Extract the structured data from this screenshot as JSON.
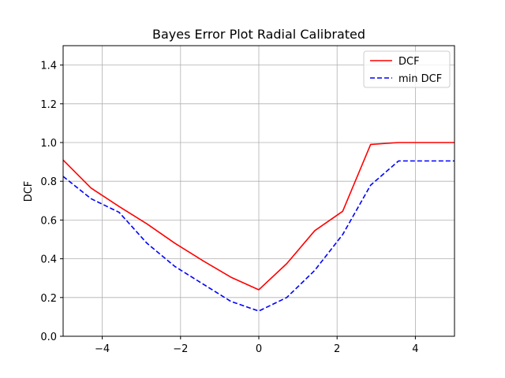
{
  "chart_data": {
    "type": "line",
    "title": "Bayes Error Plot Radial Calibrated",
    "xlabel": "",
    "ylabel": "DCF",
    "xlim": [
      -5,
      5
    ],
    "ylim": [
      0,
      1.5
    ],
    "xticks": [
      -4,
      -2,
      0,
      2,
      4
    ],
    "xtick_labels": [
      "−4",
      "−2",
      "0",
      "2",
      "4"
    ],
    "yticks": [
      0.0,
      0.2,
      0.4,
      0.6,
      0.8,
      1.0,
      1.2,
      1.4
    ],
    "ytick_labels": [
      "0.0",
      "0.2",
      "0.4",
      "0.6",
      "0.8",
      "1.0",
      "1.2",
      "1.4"
    ],
    "grid": true,
    "legend_position": "top-right",
    "x": [
      -5.0,
      -4.286,
      -3.571,
      -2.857,
      -2.143,
      -1.429,
      -0.714,
      0.0,
      0.714,
      1.429,
      2.143,
      2.857,
      3.571,
      4.286,
      5.0
    ],
    "series": [
      {
        "name": "DCF",
        "color": "#ff0000",
        "style": "solid",
        "values": [
          0.91,
          0.765,
          0.67,
          0.58,
          0.48,
          0.39,
          0.305,
          0.24,
          0.375,
          0.545,
          0.645,
          0.99,
          1.0,
          1.0,
          1.0
        ]
      },
      {
        "name": "min DCF",
        "color": "#0000ff",
        "style": "dashed",
        "values": [
          0.825,
          0.71,
          0.64,
          0.48,
          0.36,
          0.27,
          0.18,
          0.13,
          0.2,
          0.34,
          0.525,
          0.78,
          0.905,
          0.905,
          0.905
        ]
      }
    ]
  }
}
